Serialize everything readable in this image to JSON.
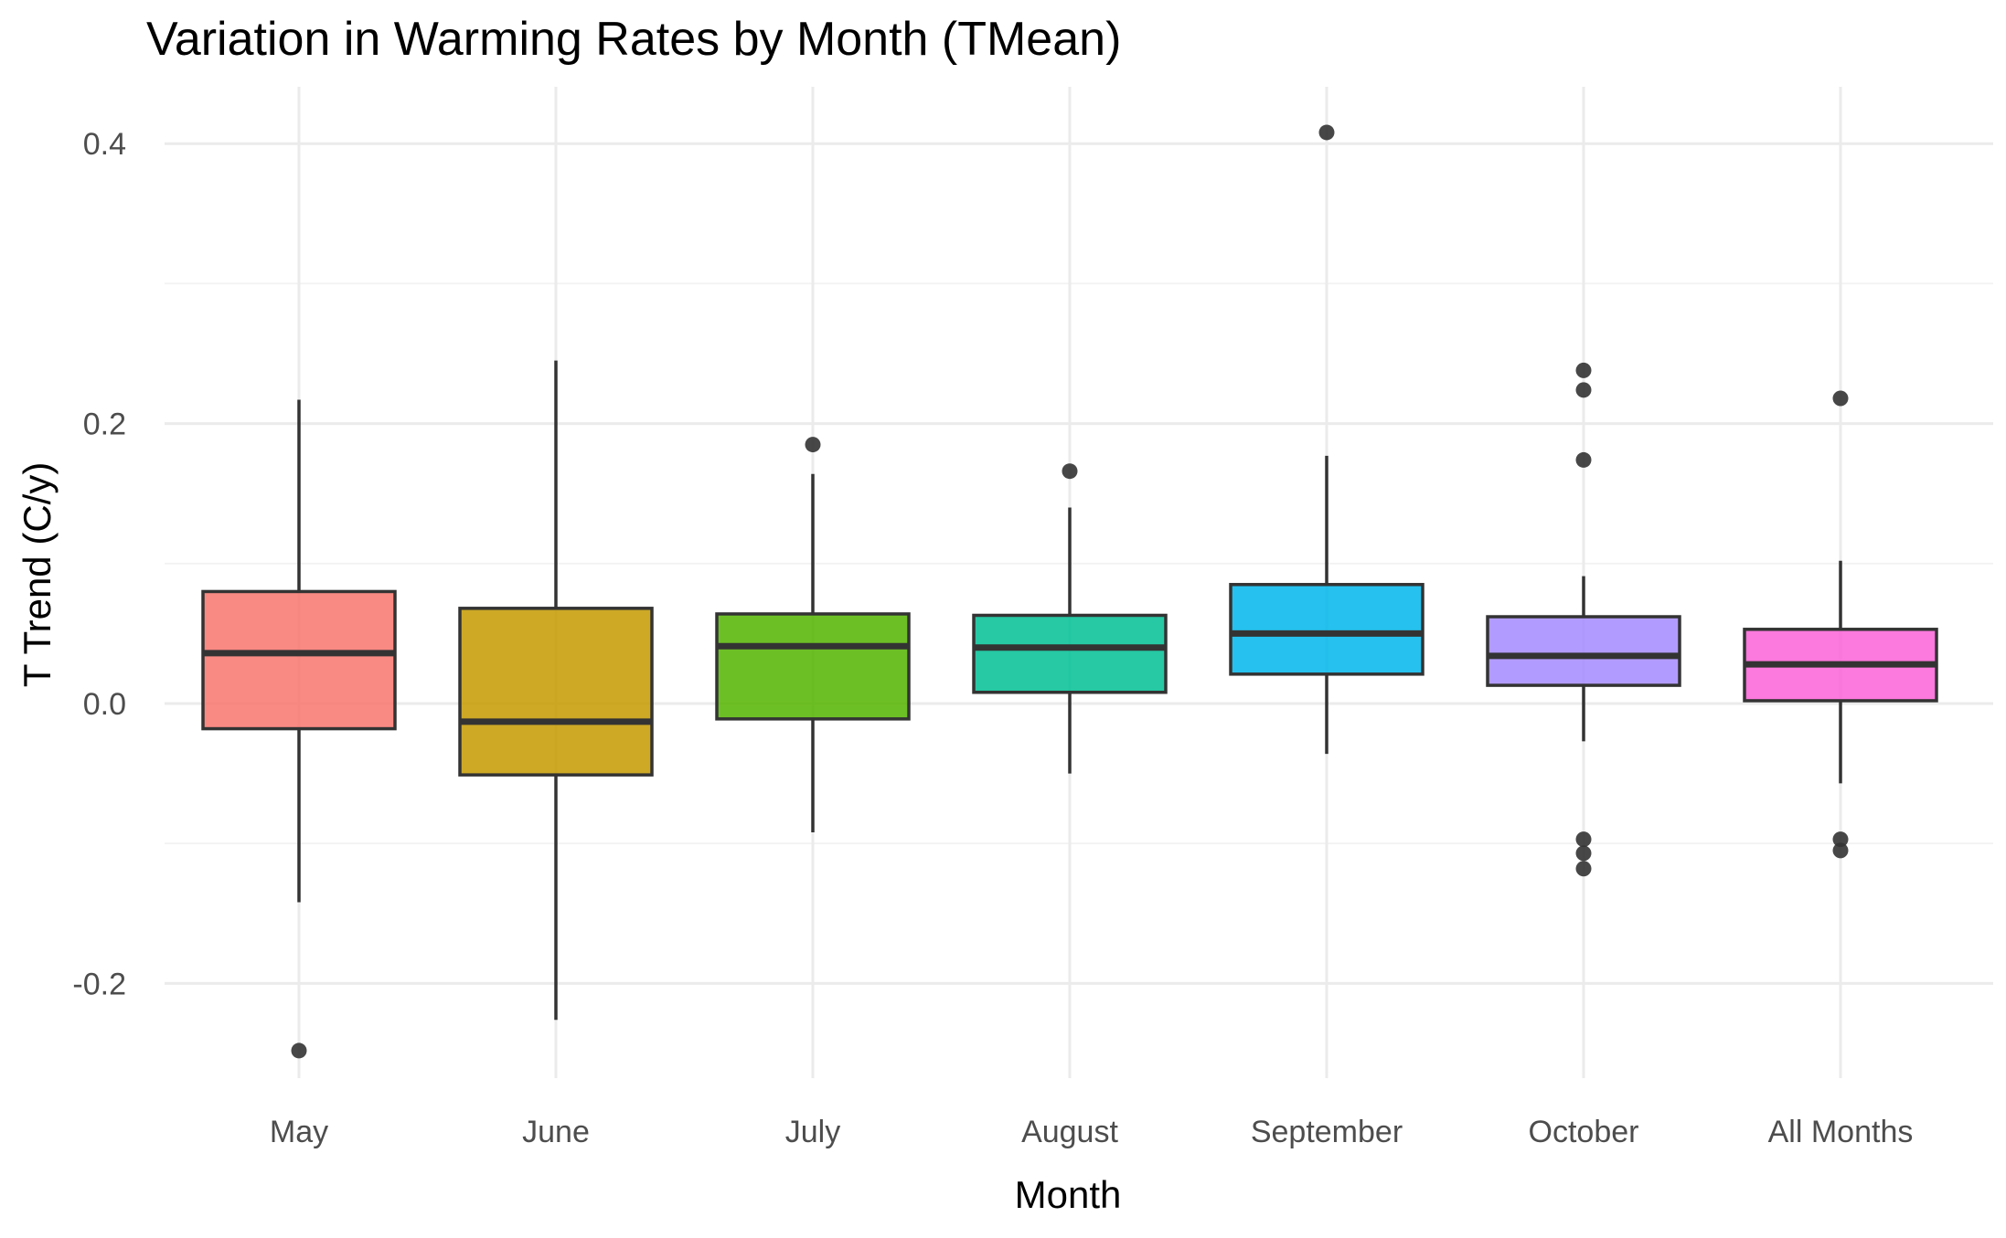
{
  "chart_data": {
    "type": "box",
    "title": "Variation in Warming Rates by Month (TMean)",
    "xlabel": "Month",
    "ylabel": "T Trend (C/y)",
    "ylim": [
      -0.27,
      0.42
    ],
    "yticks": [
      -0.2,
      0.0,
      0.2,
      0.4
    ],
    "ytick_labels": [
      "-0.2",
      "0.0",
      "0.2",
      "0.4"
    ],
    "grid": true,
    "legend": "none",
    "categories": [
      "May",
      "June",
      "July",
      "August",
      "September",
      "October",
      "All Months"
    ],
    "series": [
      {
        "category": "May",
        "color": "#F8766D",
        "whisker_low": -0.142,
        "q1": -0.018,
        "median": 0.036,
        "q3": 0.08,
        "whisker_high": 0.217,
        "outliers": [
          -0.248
        ]
      },
      {
        "category": "June",
        "color": "#C49A00",
        "whisker_low": -0.226,
        "q1": -0.051,
        "median": -0.013,
        "q3": 0.068,
        "whisker_high": 0.245,
        "outliers": []
      },
      {
        "category": "July",
        "color": "#53B400",
        "whisker_low": -0.092,
        "q1": -0.011,
        "median": 0.041,
        "q3": 0.064,
        "whisker_high": 0.164,
        "outliers": [
          0.185
        ]
      },
      {
        "category": "August",
        "color": "#00C094",
        "whisker_low": -0.05,
        "q1": 0.008,
        "median": 0.04,
        "q3": 0.063,
        "whisker_high": 0.14,
        "outliers": [
          0.166
        ]
      },
      {
        "category": "September",
        "color": "#00B6EB",
        "whisker_low": -0.036,
        "q1": 0.021,
        "median": 0.05,
        "q3": 0.085,
        "whisker_high": 0.177,
        "outliers": [
          0.408
        ]
      },
      {
        "category": "October",
        "color": "#A58AFF",
        "whisker_low": -0.027,
        "q1": 0.013,
        "median": 0.034,
        "q3": 0.062,
        "whisker_high": 0.091,
        "outliers": [
          0.238,
          0.224,
          0.174,
          -0.097,
          -0.107,
          -0.118
        ]
      },
      {
        "category": "All Months",
        "color": "#FB61D7",
        "whisker_low": -0.057,
        "q1": 0.002,
        "median": 0.028,
        "q3": 0.053,
        "whisker_high": 0.102,
        "outliers": [
          0.218,
          -0.097,
          -0.105
        ]
      }
    ]
  }
}
